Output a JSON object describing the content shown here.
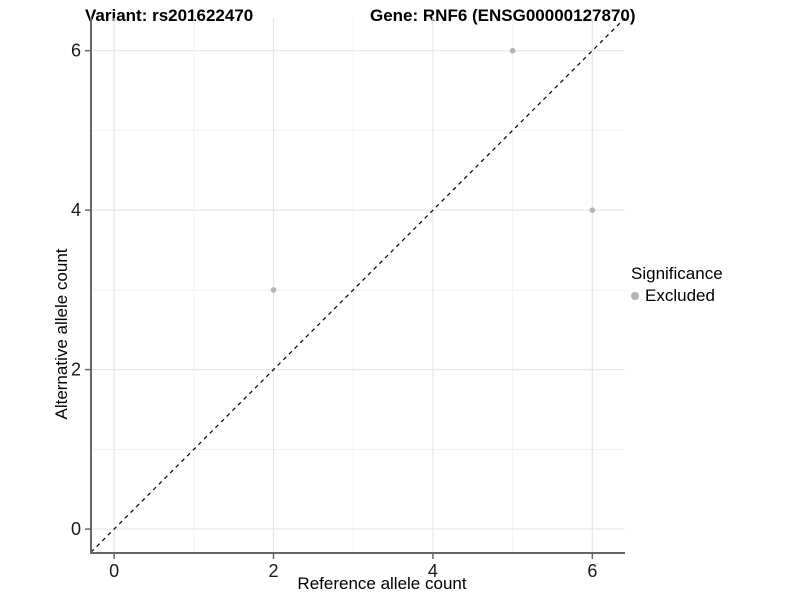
{
  "titles": {
    "left": "Variant: rs201622470",
    "right": "Gene: RNF6 (ENSG00000127870)"
  },
  "chart_data": {
    "type": "scatter",
    "xlabel": "Reference allele count",
    "ylabel": "Alternative allele count",
    "xlim": [
      -0.29,
      6.41
    ],
    "ylim": [
      -0.3,
      6.41
    ],
    "xticks": [
      0,
      2,
      4,
      6
    ],
    "yticks": [
      0,
      2,
      4,
      6
    ],
    "minor_xticks": [
      1,
      3,
      5
    ],
    "minor_yticks": [
      1,
      3,
      5
    ],
    "grid": true,
    "points": [
      {
        "x": 5,
        "y": 6,
        "series": "Excluded"
      },
      {
        "x": 6,
        "y": 4,
        "series": "Excluded"
      },
      {
        "x": 2,
        "y": 3,
        "series": "Excluded"
      }
    ],
    "reference_line": {
      "slope": 1,
      "intercept": 0,
      "style": "dashed",
      "color": "#000000"
    },
    "legend": {
      "position": "right",
      "title": "Significance",
      "items": [
        {
          "label": "Excluded",
          "color": "#b4b4b4"
        }
      ]
    },
    "colors": {
      "point": "#b4b4b4",
      "grid_major": "#e7e7e7",
      "grid_minor": "#f2f2f2",
      "axis_line": "#666666",
      "tick_mark": "#666666",
      "tick_label": "#1a1a1a"
    },
    "point_radius": 2.8
  }
}
